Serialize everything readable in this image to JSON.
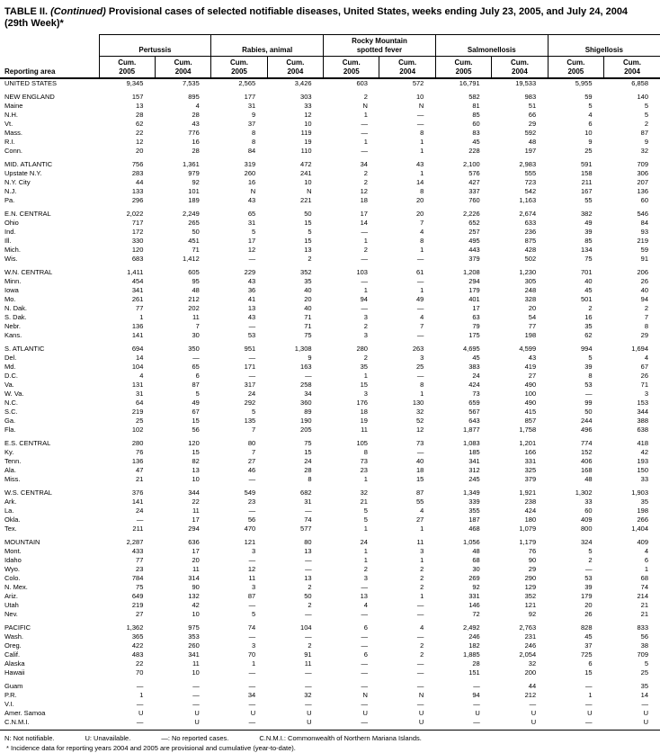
{
  "title": {
    "prefix": "TABLE II.",
    "continued": "(Continued)",
    "rest": "Provisional cases of selected notifiable diseases, United States, weeks ending July 23, 2005, and July 24, 2004",
    "subtitle": "(29th Week)*"
  },
  "header": {
    "reporting_area_label": "Reporting area",
    "groups": [
      {
        "label_lines": [
          "Pertussis"
        ]
      },
      {
        "label_lines": [
          "Rabies, animal"
        ]
      },
      {
        "label_lines": [
          "Rocky Mountain",
          "spotted fever"
        ]
      },
      {
        "label_lines": [
          "Salmonellosis"
        ]
      },
      {
        "label_lines": [
          "Shigellosis"
        ]
      }
    ],
    "subcol_line1": "Cum.",
    "subcol_years": [
      "2005",
      "2004"
    ]
  },
  "rows": [
    {
      "area": "UNITED STATES",
      "kind": "national",
      "gap_before": false,
      "values": [
        "9,345",
        "7,535",
        "2,565",
        "3,426",
        "603",
        "572",
        "16,791",
        "19,533",
        "5,955",
        "6,858"
      ]
    },
    {
      "area": "NEW ENGLAND",
      "kind": "region",
      "gap_before": true,
      "values": [
        "157",
        "895",
        "177",
        "303",
        "2",
        "10",
        "582",
        "983",
        "59",
        "140"
      ]
    },
    {
      "area": "Maine",
      "kind": "state",
      "gap_before": false,
      "values": [
        "13",
        "4",
        "31",
        "33",
        "N",
        "N",
        "81",
        "51",
        "5",
        "5"
      ]
    },
    {
      "area": "N.H.",
      "kind": "state",
      "gap_before": false,
      "values": [
        "28",
        "28",
        "9",
        "12",
        "1",
        "—",
        "85",
        "66",
        "4",
        "5"
      ]
    },
    {
      "area": "Vt.",
      "kind": "state",
      "gap_before": false,
      "values": [
        "62",
        "43",
        "37",
        "10",
        "—",
        "—",
        "60",
        "29",
        "6",
        "2"
      ]
    },
    {
      "area": "Mass.",
      "kind": "state",
      "gap_before": false,
      "values": [
        "22",
        "776",
        "8",
        "119",
        "—",
        "8",
        "83",
        "592",
        "10",
        "87"
      ]
    },
    {
      "area": "R.I.",
      "kind": "state",
      "gap_before": false,
      "values": [
        "12",
        "16",
        "8",
        "19",
        "1",
        "1",
        "45",
        "48",
        "9",
        "9"
      ]
    },
    {
      "area": "Conn.",
      "kind": "state",
      "gap_before": false,
      "values": [
        "20",
        "28",
        "84",
        "110",
        "—",
        "1",
        "228",
        "197",
        "25",
        "32"
      ]
    },
    {
      "area": "MID. ATLANTIC",
      "kind": "region",
      "gap_before": true,
      "values": [
        "756",
        "1,361",
        "319",
        "472",
        "34",
        "43",
        "2,100",
        "2,983",
        "591",
        "709"
      ]
    },
    {
      "area": "Upstate N.Y.",
      "kind": "state",
      "gap_before": false,
      "values": [
        "283",
        "979",
        "260",
        "241",
        "2",
        "1",
        "576",
        "555",
        "158",
        "306"
      ]
    },
    {
      "area": "N.Y. City",
      "kind": "state",
      "gap_before": false,
      "values": [
        "44",
        "92",
        "16",
        "10",
        "2",
        "14",
        "427",
        "723",
        "211",
        "207"
      ]
    },
    {
      "area": "N.J.",
      "kind": "state",
      "gap_before": false,
      "values": [
        "133",
        "101",
        "N",
        "N",
        "12",
        "8",
        "337",
        "542",
        "167",
        "136"
      ]
    },
    {
      "area": "Pa.",
      "kind": "state",
      "gap_before": false,
      "values": [
        "296",
        "189",
        "43",
        "221",
        "18",
        "20",
        "760",
        "1,163",
        "55",
        "60"
      ]
    },
    {
      "area": "E.N. CENTRAL",
      "kind": "region",
      "gap_before": true,
      "values": [
        "2,022",
        "2,249",
        "65",
        "50",
        "17",
        "20",
        "2,226",
        "2,674",
        "382",
        "546"
      ]
    },
    {
      "area": "Ohio",
      "kind": "state",
      "gap_before": false,
      "values": [
        "717",
        "265",
        "31",
        "15",
        "14",
        "7",
        "652",
        "633",
        "49",
        "84"
      ]
    },
    {
      "area": "Ind.",
      "kind": "state",
      "gap_before": false,
      "values": [
        "172",
        "50",
        "5",
        "5",
        "—",
        "4",
        "257",
        "236",
        "39",
        "93"
      ]
    },
    {
      "area": "Ill.",
      "kind": "state",
      "gap_before": false,
      "values": [
        "330",
        "451",
        "17",
        "15",
        "1",
        "8",
        "495",
        "875",
        "85",
        "219"
      ]
    },
    {
      "area": "Mich.",
      "kind": "state",
      "gap_before": false,
      "values": [
        "120",
        "71",
        "12",
        "13",
        "2",
        "1",
        "443",
        "428",
        "134",
        "59"
      ]
    },
    {
      "area": "Wis.",
      "kind": "state",
      "gap_before": false,
      "values": [
        "683",
        "1,412",
        "—",
        "2",
        "—",
        "—",
        "379",
        "502",
        "75",
        "91"
      ]
    },
    {
      "area": "W.N. CENTRAL",
      "kind": "region",
      "gap_before": true,
      "values": [
        "1,411",
        "605",
        "229",
        "352",
        "103",
        "61",
        "1,208",
        "1,230",
        "701",
        "206"
      ]
    },
    {
      "area": "Minn.",
      "kind": "state",
      "gap_before": false,
      "values": [
        "454",
        "95",
        "43",
        "35",
        "—",
        "—",
        "294",
        "305",
        "40",
        "26"
      ]
    },
    {
      "area": "Iowa",
      "kind": "state",
      "gap_before": false,
      "values": [
        "341",
        "48",
        "36",
        "40",
        "1",
        "1",
        "179",
        "248",
        "45",
        "40"
      ]
    },
    {
      "area": "Mo.",
      "kind": "state",
      "gap_before": false,
      "values": [
        "261",
        "212",
        "41",
        "20",
        "94",
        "49",
        "401",
        "328",
        "501",
        "94"
      ]
    },
    {
      "area": "N. Dak.",
      "kind": "state",
      "gap_before": false,
      "values": [
        "77",
        "202",
        "13",
        "40",
        "—",
        "—",
        "17",
        "20",
        "2",
        "2"
      ]
    },
    {
      "area": "S. Dak.",
      "kind": "state",
      "gap_before": false,
      "values": [
        "1",
        "11",
        "43",
        "71",
        "3",
        "4",
        "63",
        "54",
        "16",
        "7"
      ]
    },
    {
      "area": "Nebr.",
      "kind": "state",
      "gap_before": false,
      "values": [
        "136",
        "7",
        "—",
        "71",
        "2",
        "7",
        "79",
        "77",
        "35",
        "8"
      ]
    },
    {
      "area": "Kans.",
      "kind": "state",
      "gap_before": false,
      "values": [
        "141",
        "30",
        "53",
        "75",
        "3",
        "—",
        "175",
        "198",
        "62",
        "29"
      ]
    },
    {
      "area": "S. ATLANTIC",
      "kind": "region",
      "gap_before": true,
      "values": [
        "694",
        "350",
        "951",
        "1,308",
        "280",
        "263",
        "4,695",
        "4,599",
        "994",
        "1,694"
      ]
    },
    {
      "area": "Del.",
      "kind": "state",
      "gap_before": false,
      "values": [
        "14",
        "—",
        "—",
        "9",
        "2",
        "3",
        "45",
        "43",
        "5",
        "4"
      ]
    },
    {
      "area": "Md.",
      "kind": "state",
      "gap_before": false,
      "values": [
        "104",
        "65",
        "171",
        "163",
        "35",
        "25",
        "383",
        "419",
        "39",
        "67"
      ]
    },
    {
      "area": "D.C.",
      "kind": "state",
      "gap_before": false,
      "values": [
        "4",
        "6",
        "—",
        "—",
        "1",
        "—",
        "24",
        "27",
        "8",
        "26"
      ]
    },
    {
      "area": "Va.",
      "kind": "state",
      "gap_before": false,
      "values": [
        "131",
        "87",
        "317",
        "258",
        "15",
        "8",
        "424",
        "490",
        "53",
        "71"
      ]
    },
    {
      "area": "W. Va.",
      "kind": "state",
      "gap_before": false,
      "values": [
        "31",
        "5",
        "24",
        "34",
        "3",
        "1",
        "73",
        "100",
        "—",
        "3"
      ]
    },
    {
      "area": "N.C.",
      "kind": "state",
      "gap_before": false,
      "values": [
        "64",
        "49",
        "292",
        "360",
        "176",
        "130",
        "659",
        "490",
        "99",
        "153"
      ]
    },
    {
      "area": "S.C.",
      "kind": "state",
      "gap_before": false,
      "values": [
        "219",
        "67",
        "5",
        "89",
        "18",
        "32",
        "567",
        "415",
        "50",
        "344"
      ]
    },
    {
      "area": "Ga.",
      "kind": "state",
      "gap_before": false,
      "values": [
        "25",
        "15",
        "135",
        "190",
        "19",
        "52",
        "643",
        "857",
        "244",
        "388"
      ]
    },
    {
      "area": "Fla.",
      "kind": "state",
      "gap_before": false,
      "values": [
        "102",
        "56",
        "7",
        "205",
        "11",
        "12",
        "1,877",
        "1,758",
        "496",
        "638"
      ]
    },
    {
      "area": "E.S. CENTRAL",
      "kind": "region",
      "gap_before": true,
      "values": [
        "280",
        "120",
        "80",
        "75",
        "105",
        "73",
        "1,083",
        "1,201",
        "774",
        "418"
      ]
    },
    {
      "area": "Ky.",
      "kind": "state",
      "gap_before": false,
      "values": [
        "76",
        "15",
        "7",
        "15",
        "8",
        "—",
        "185",
        "166",
        "152",
        "42"
      ]
    },
    {
      "area": "Tenn.",
      "kind": "state",
      "gap_before": false,
      "values": [
        "136",
        "82",
        "27",
        "24",
        "73",
        "40",
        "341",
        "331",
        "406",
        "193"
      ]
    },
    {
      "area": "Ala.",
      "kind": "state",
      "gap_before": false,
      "values": [
        "47",
        "13",
        "46",
        "28",
        "23",
        "18",
        "312",
        "325",
        "168",
        "150"
      ]
    },
    {
      "area": "Miss.",
      "kind": "state",
      "gap_before": false,
      "values": [
        "21",
        "10",
        "—",
        "8",
        "1",
        "15",
        "245",
        "379",
        "48",
        "33"
      ]
    },
    {
      "area": "W.S. CENTRAL",
      "kind": "region",
      "gap_before": true,
      "values": [
        "376",
        "344",
        "549",
        "682",
        "32",
        "87",
        "1,349",
        "1,921",
        "1,302",
        "1,903"
      ]
    },
    {
      "area": "Ark.",
      "kind": "state",
      "gap_before": false,
      "values": [
        "141",
        "22",
        "23",
        "31",
        "21",
        "55",
        "339",
        "238",
        "33",
        "35"
      ]
    },
    {
      "area": "La.",
      "kind": "state",
      "gap_before": false,
      "values": [
        "24",
        "11",
        "—",
        "—",
        "5",
        "4",
        "355",
        "424",
        "60",
        "198"
      ]
    },
    {
      "area": "Okla.",
      "kind": "state",
      "gap_before": false,
      "values": [
        "—",
        "17",
        "56",
        "74",
        "5",
        "27",
        "187",
        "180",
        "409",
        "266"
      ]
    },
    {
      "area": "Tex.",
      "kind": "state",
      "gap_before": false,
      "values": [
        "211",
        "294",
        "470",
        "577",
        "1",
        "1",
        "468",
        "1,079",
        "800",
        "1,404"
      ]
    },
    {
      "area": "MOUNTAIN",
      "kind": "region",
      "gap_before": true,
      "values": [
        "2,287",
        "636",
        "121",
        "80",
        "24",
        "11",
        "1,056",
        "1,179",
        "324",
        "409"
      ]
    },
    {
      "area": "Mont.",
      "kind": "state",
      "gap_before": false,
      "values": [
        "433",
        "17",
        "3",
        "13",
        "1",
        "3",
        "48",
        "76",
        "5",
        "4"
      ]
    },
    {
      "area": "Idaho",
      "kind": "state",
      "gap_before": false,
      "values": [
        "77",
        "20",
        "—",
        "—",
        "1",
        "1",
        "68",
        "90",
        "2",
        "6"
      ]
    },
    {
      "area": "Wyo.",
      "kind": "state",
      "gap_before": false,
      "values": [
        "23",
        "11",
        "12",
        "—",
        "2",
        "2",
        "30",
        "29",
        "—",
        "1"
      ]
    },
    {
      "area": "Colo.",
      "kind": "state",
      "gap_before": false,
      "values": [
        "784",
        "314",
        "11",
        "13",
        "3",
        "2",
        "269",
        "290",
        "53",
        "68"
      ]
    },
    {
      "area": "N. Mex.",
      "kind": "state",
      "gap_before": false,
      "values": [
        "75",
        "90",
        "3",
        "2",
        "—",
        "2",
        "92",
        "129",
        "39",
        "74"
      ]
    },
    {
      "area": "Ariz.",
      "kind": "state",
      "gap_before": false,
      "values": [
        "649",
        "132",
        "87",
        "50",
        "13",
        "1",
        "331",
        "352",
        "179",
        "214"
      ]
    },
    {
      "area": "Utah",
      "kind": "state",
      "gap_before": false,
      "values": [
        "219",
        "42",
        "—",
        "2",
        "4",
        "—",
        "146",
        "121",
        "20",
        "21"
      ]
    },
    {
      "area": "Nev.",
      "kind": "state",
      "gap_before": false,
      "values": [
        "27",
        "10",
        "5",
        "—",
        "—",
        "—",
        "72",
        "92",
        "26",
        "21"
      ]
    },
    {
      "area": "PACIFIC",
      "kind": "region",
      "gap_before": true,
      "values": [
        "1,362",
        "975",
        "74",
        "104",
        "6",
        "4",
        "2,492",
        "2,763",
        "828",
        "833"
      ]
    },
    {
      "area": "Wash.",
      "kind": "state",
      "gap_before": false,
      "values": [
        "365",
        "353",
        "—",
        "—",
        "—",
        "—",
        "246",
        "231",
        "45",
        "56"
      ]
    },
    {
      "area": "Oreg.",
      "kind": "state",
      "gap_before": false,
      "values": [
        "422",
        "260",
        "3",
        "2",
        "—",
        "2",
        "182",
        "246",
        "37",
        "38"
      ]
    },
    {
      "area": "Calif.",
      "kind": "state",
      "gap_before": false,
      "values": [
        "483",
        "341",
        "70",
        "91",
        "6",
        "2",
        "1,885",
        "2,054",
        "725",
        "709"
      ]
    },
    {
      "area": "Alaska",
      "kind": "state",
      "gap_before": false,
      "values": [
        "22",
        "11",
        "1",
        "11",
        "—",
        "—",
        "28",
        "32",
        "6",
        "5"
      ]
    },
    {
      "area": "Hawaii",
      "kind": "state",
      "gap_before": false,
      "values": [
        "70",
        "10",
        "—",
        "—",
        "—",
        "—",
        "151",
        "200",
        "15",
        "25"
      ]
    },
    {
      "area": "Guam",
      "kind": "territory",
      "gap_before": true,
      "values": [
        "—",
        "—",
        "—",
        "—",
        "—",
        "—",
        "—",
        "44",
        "—",
        "35"
      ]
    },
    {
      "area": "P.R.",
      "kind": "territory",
      "gap_before": false,
      "values": [
        "1",
        "—",
        "34",
        "32",
        "N",
        "N",
        "94",
        "212",
        "1",
        "14"
      ]
    },
    {
      "area": "V.I.",
      "kind": "territory",
      "gap_before": false,
      "values": [
        "—",
        "—",
        "—",
        "—",
        "—",
        "—",
        "—",
        "—",
        "—",
        "—"
      ]
    },
    {
      "area": "Amer. Samoa",
      "kind": "territory",
      "gap_before": false,
      "values": [
        "U",
        "U",
        "U",
        "U",
        "U",
        "U",
        "U",
        "U",
        "U",
        "U"
      ]
    },
    {
      "area": "C.N.M.I.",
      "kind": "territory",
      "gap_before": false,
      "values": [
        "—",
        "U",
        "—",
        "U",
        "—",
        "U",
        "—",
        "U",
        "—",
        "U"
      ]
    }
  ],
  "footnotes": {
    "legend": [
      "N: Not notifiable.",
      "U: Unavailable.",
      "—: No reported cases.",
      "C.N.M.I.: Commonwealth of Northern Mariana Islands."
    ],
    "note": "* Incidence data for reporting years 2004 and 2005 are provisional and cumulative (year-to-date)."
  }
}
